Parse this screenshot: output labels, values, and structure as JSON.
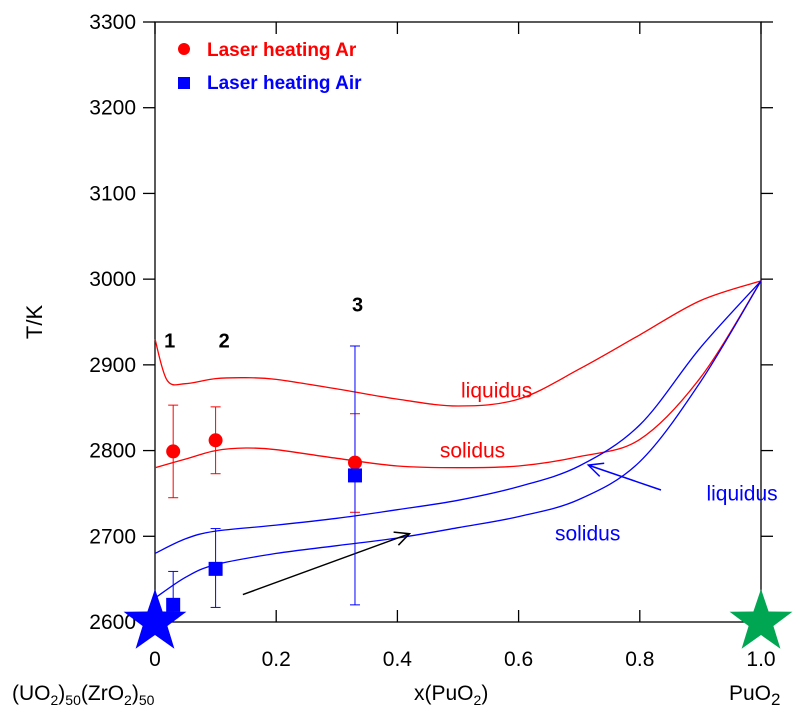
{
  "chart_data": {
    "type": "line",
    "title": "",
    "ylabel": "T/K",
    "xlabel": {
      "left_main": "(UO",
      "left_sub1": "2",
      "left_mid1": ")",
      "left_sub2": "50",
      "left_mid2": "(ZrO",
      "left_sub3": "2",
      "left_mid3": ")",
      "left_sub4": "50",
      "center_main": "x(PuO",
      "center_sub": "2",
      "center_end": ")",
      "right_main": "PuO",
      "right_sub": "2"
    },
    "xlim": [
      0,
      1.0
    ],
    "ylim": [
      2600,
      3300
    ],
    "x_ticks": [
      {
        "value": 0,
        "label": "0"
      },
      {
        "value": 0.2,
        "label": "0.2"
      },
      {
        "value": 0.4,
        "label": "0.4"
      },
      {
        "value": 0.6,
        "label": "0.6"
      },
      {
        "value": 0.8,
        "label": "0.8"
      },
      {
        "value": 1.0,
        "label": "1.0"
      }
    ],
    "y_ticks": [
      {
        "value": 2600,
        "label": "2600"
      },
      {
        "value": 2700,
        "label": "2700"
      },
      {
        "value": 2800,
        "label": "2800"
      },
      {
        "value": 2900,
        "label": "2900"
      },
      {
        "value": 3000,
        "label": "3000"
      },
      {
        "value": 3100,
        "label": "3100"
      },
      {
        "value": 3200,
        "label": "3200"
      },
      {
        "value": 3300,
        "label": "3300"
      }
    ],
    "legend": {
      "placement": "top-left",
      "entries": [
        {
          "label": "Laser heating Ar",
          "marker": "circle",
          "color": "#ff0000"
        },
        {
          "label": "Laser heating Air",
          "marker": "square",
          "color": "#0000ff"
        }
      ]
    },
    "series": [
      {
        "name": "Laser heating Ar",
        "marker": "circle",
        "color": "#ff0000",
        "points": [
          {
            "x": 0.03,
            "y": 2799,
            "err_low": 2745,
            "err_high": 2853
          },
          {
            "x": 0.1,
            "y": 2812,
            "err_low": 2773,
            "err_high": 2851
          },
          {
            "x": 0.33,
            "y": 2786,
            "err_low": 2728,
            "err_high": 2843
          }
        ]
      },
      {
        "name": "Laser heating Air",
        "marker": "square",
        "color": "#0000ff",
        "points": [
          {
            "x": 0.03,
            "y": 2620,
            "err_low": 2605,
            "err_high": 2659
          },
          {
            "x": 0.1,
            "y": 2662,
            "err_low": 2617,
            "err_high": 2709
          },
          {
            "x": 0.33,
            "y": 2771,
            "err_low": 2620,
            "err_high": 2922
          }
        ]
      }
    ],
    "curves": [
      {
        "id": "red-liquidus",
        "color": "#ff0000",
        "points": [
          [
            0,
            2930
          ],
          [
            0.02,
            2882
          ],
          [
            0.05,
            2878
          ],
          [
            0.1,
            2884
          ],
          [
            0.15,
            2885
          ],
          [
            0.2,
            2883
          ],
          [
            0.3,
            2872
          ],
          [
            0.4,
            2860
          ],
          [
            0.5,
            2852
          ],
          [
            0.6,
            2860
          ],
          [
            0.7,
            2895
          ],
          [
            0.8,
            2935
          ],
          [
            0.9,
            2975
          ],
          [
            1.0,
            2998
          ]
        ]
      },
      {
        "id": "red-solidus",
        "color": "#ff0000",
        "points": [
          [
            0,
            2780
          ],
          [
            0.05,
            2790
          ],
          [
            0.1,
            2800
          ],
          [
            0.15,
            2803
          ],
          [
            0.2,
            2801
          ],
          [
            0.3,
            2791
          ],
          [
            0.4,
            2782
          ],
          [
            0.5,
            2780
          ],
          [
            0.6,
            2782
          ],
          [
            0.7,
            2793
          ],
          [
            0.8,
            2813
          ],
          [
            0.9,
            2885
          ],
          [
            1.0,
            2998
          ]
        ]
      },
      {
        "id": "blue-liquidus",
        "color": "#0000ff",
        "points": [
          [
            0,
            2680
          ],
          [
            0.05,
            2697
          ],
          [
            0.1,
            2706
          ],
          [
            0.2,
            2713
          ],
          [
            0.3,
            2721
          ],
          [
            0.4,
            2731
          ],
          [
            0.5,
            2742
          ],
          [
            0.6,
            2758
          ],
          [
            0.7,
            2782
          ],
          [
            0.8,
            2830
          ],
          [
            0.9,
            2920
          ],
          [
            1.0,
            2998
          ]
        ]
      },
      {
        "id": "blue-solidus",
        "color": "#0000ff",
        "points": [
          [
            0,
            2628
          ],
          [
            0.05,
            2652
          ],
          [
            0.1,
            2667
          ],
          [
            0.2,
            2680
          ],
          [
            0.3,
            2689
          ],
          [
            0.4,
            2698
          ],
          [
            0.5,
            2710
          ],
          [
            0.6,
            2723
          ],
          [
            0.7,
            2743
          ],
          [
            0.8,
            2787
          ],
          [
            0.9,
            2880
          ],
          [
            1.0,
            2998
          ]
        ]
      }
    ],
    "annotations": [
      {
        "id": "label-1",
        "text": "1",
        "x": 0.015,
        "y": 2920,
        "color": "#000000",
        "bold": true
      },
      {
        "id": "label-2",
        "text": "2",
        "x": 0.105,
        "y": 2920,
        "color": "#000000",
        "bold": true
      },
      {
        "id": "label-3",
        "text": "3",
        "x": 0.325,
        "y": 2962,
        "color": "#000000",
        "bold": true
      },
      {
        "id": "label-red-liquidus",
        "text": "liquidus",
        "x": 0.505,
        "y": 2862,
        "color": "#ff0000",
        "bold": false
      },
      {
        "id": "label-red-solidus",
        "text": "solidus",
        "x": 0.47,
        "y": 2792,
        "color": "#ff0000",
        "bold": false
      },
      {
        "id": "label-blue-liquidus",
        "text": "liquidus",
        "x": 0.91,
        "y": 2742,
        "color": "#0000ff",
        "bold": false
      },
      {
        "id": "label-blue-solidus",
        "text": "solidus",
        "x": 0.66,
        "y": 2695,
        "color": "#0000ff",
        "bold": false
      }
    ],
    "arrows": [
      {
        "id": "black-arrow",
        "color": "#000000",
        "from": [
          0.145,
          2632
        ],
        "to": [
          0.42,
          2703
        ]
      },
      {
        "id": "blue-arrow",
        "color": "#0000ff",
        "from": [
          0.835,
          2754
        ],
        "to": [
          0.715,
          2783
        ]
      }
    ],
    "stars": [
      {
        "id": "blue-star",
        "color": "#0000ff",
        "x": 0.0,
        "y": 2600
      },
      {
        "id": "green-star",
        "color": "#00a651",
        "x": 1.0,
        "y": 2600
      }
    ],
    "grid": false
  }
}
